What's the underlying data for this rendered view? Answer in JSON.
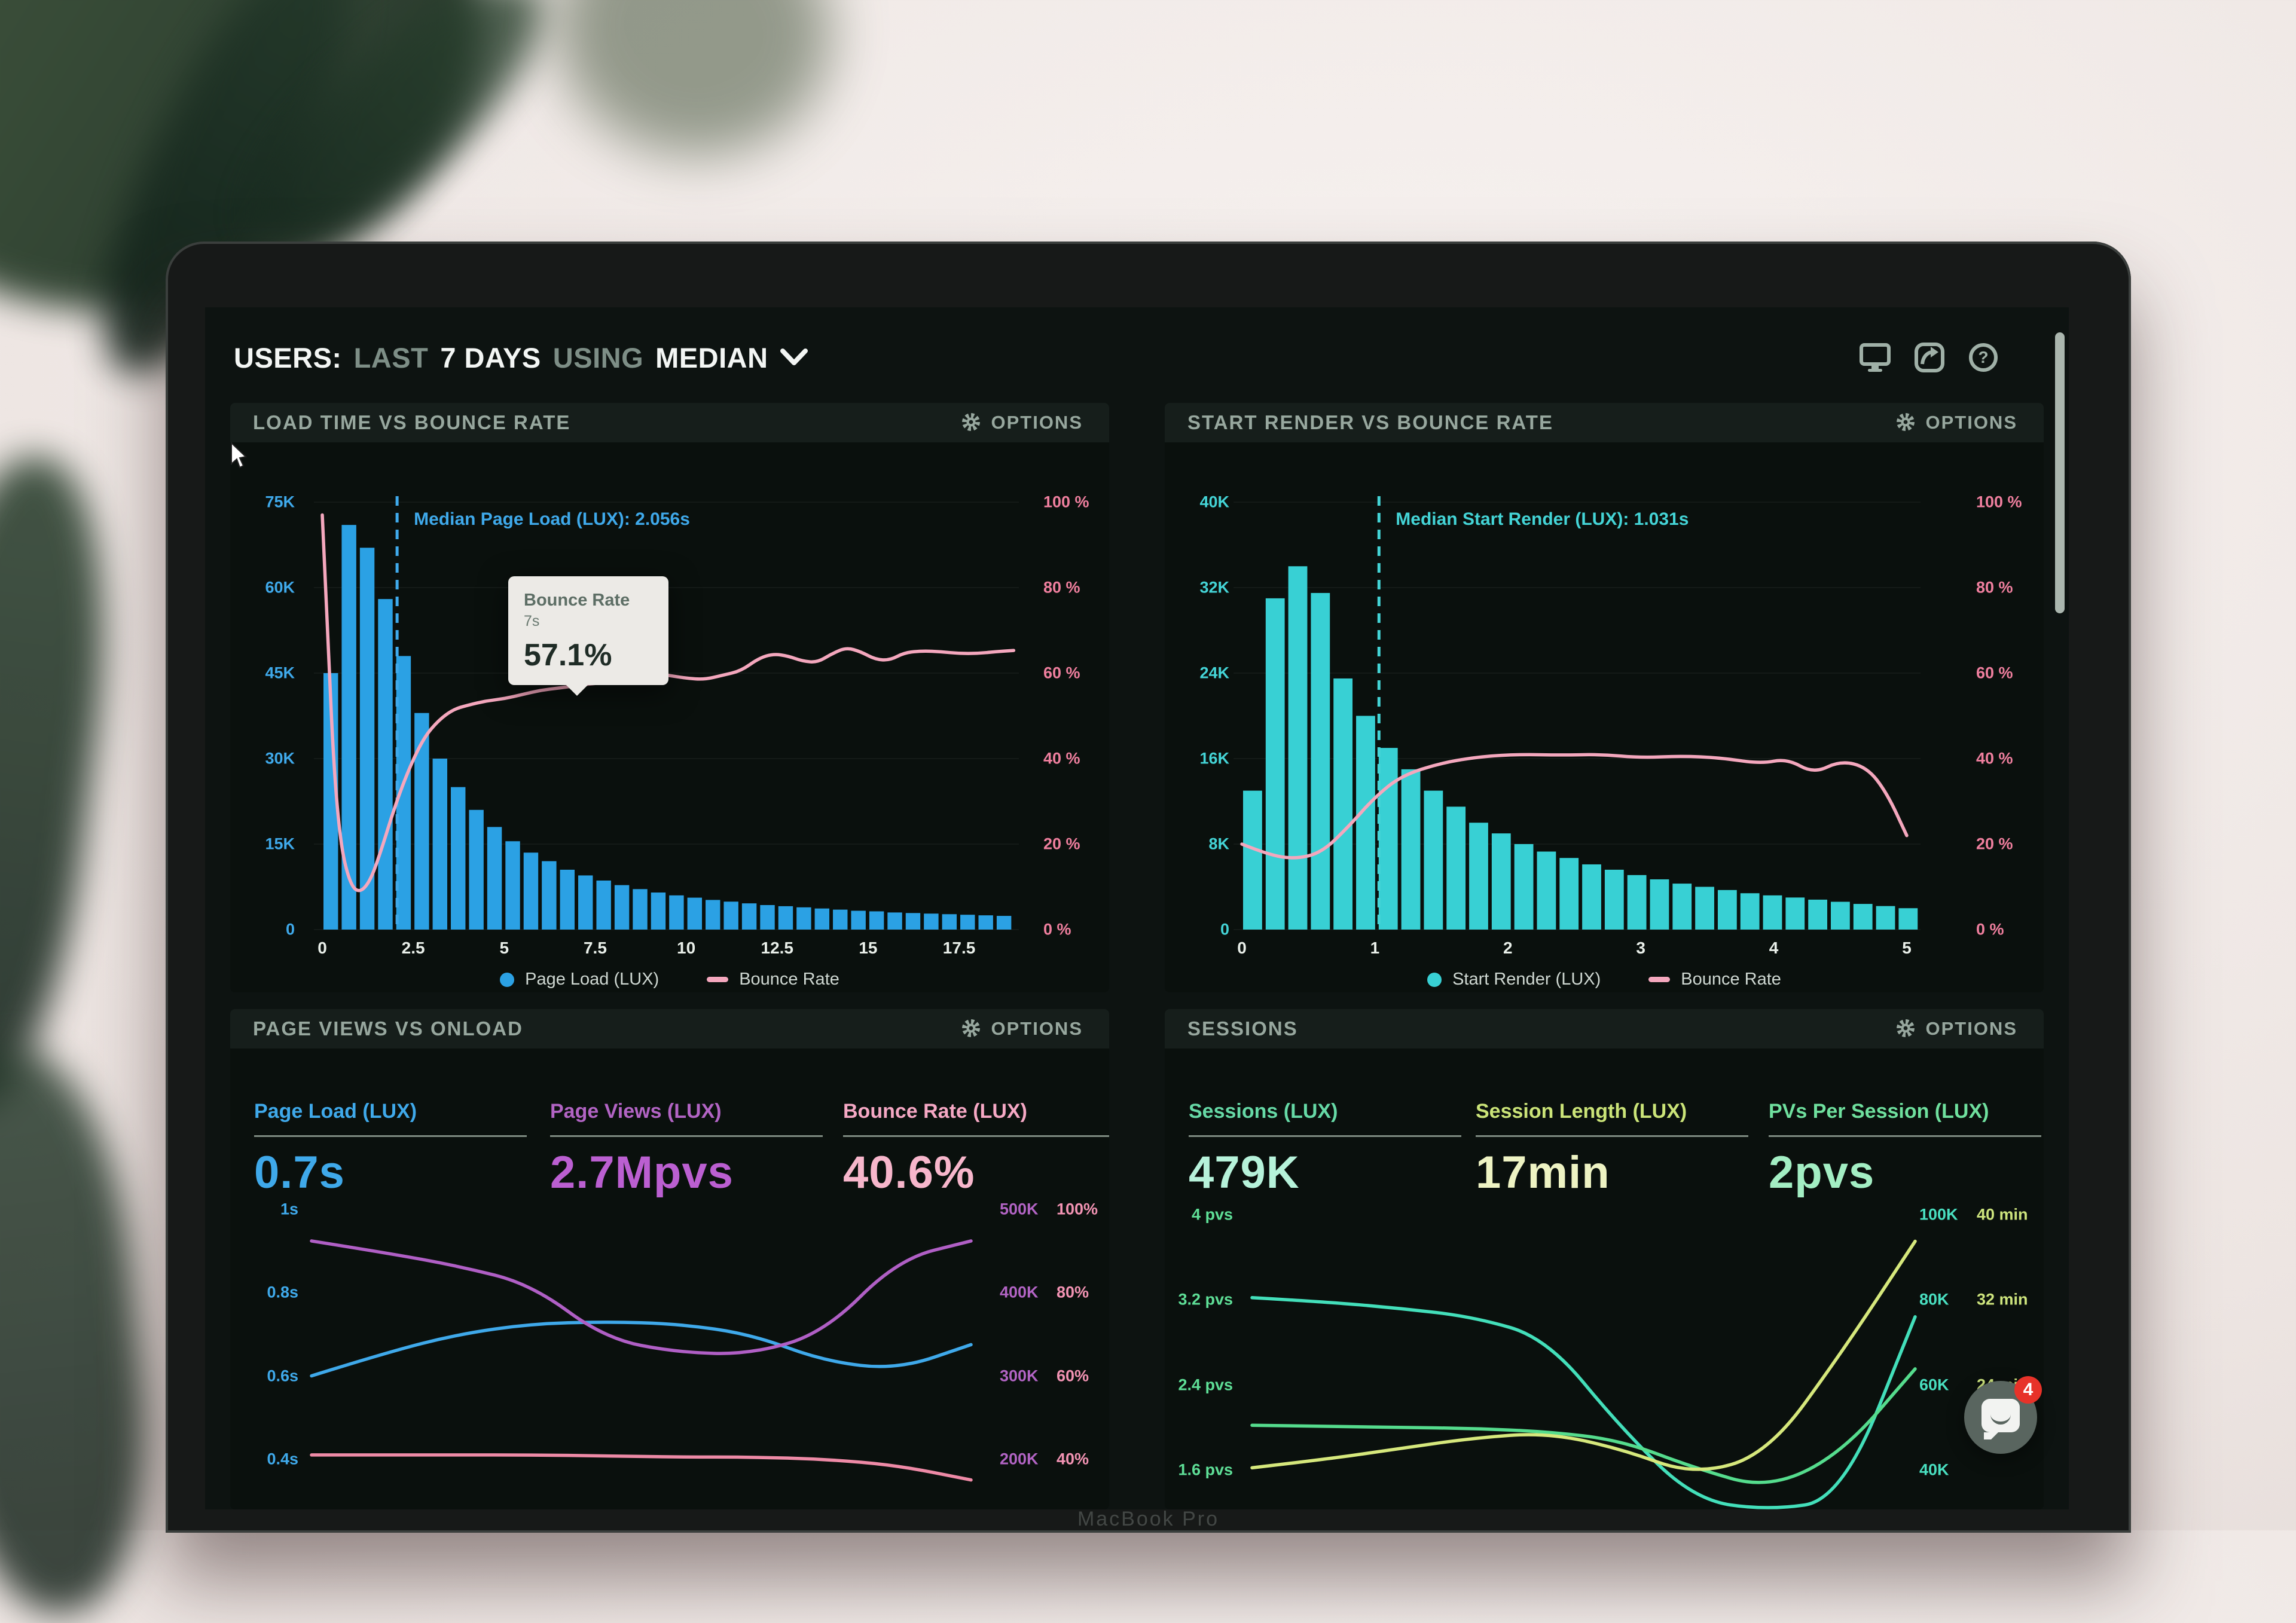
{
  "window": {
    "bezel_text": "MacBook Pro"
  },
  "header": {
    "title_parts": [
      {
        "text": "USERS:",
        "muted": false
      },
      {
        "text": "LAST",
        "muted": true
      },
      {
        "text": "7 DAYS",
        "muted": false
      },
      {
        "text": "USING",
        "muted": true
      },
      {
        "text": "MEDIAN",
        "muted": false
      }
    ],
    "icons": [
      "monitor-icon",
      "share-icon",
      "question-icon"
    ]
  },
  "panels": [
    {
      "title": "LOAD TIME VS BOUNCE RATE",
      "options_label": "OPTIONS"
    },
    {
      "title": "START RENDER VS BOUNCE RATE",
      "options_label": "OPTIONS"
    },
    {
      "title": "PAGE VIEWS VS ONLOAD",
      "options_label": "OPTIONS",
      "metrics": [
        {
          "label": "Page Load (LUX)",
          "value": "0.7s",
          "label_color": "#3fa9ea",
          "value_color": "#3fa9ea"
        },
        {
          "label": "Page Views (LUX)",
          "value": "2.7Mpvs",
          "label_color": "#b264c4",
          "value_color": "#bb5fd1"
        },
        {
          "label": "Bounce Rate (LUX)",
          "value": "40.6%",
          "label_color": "#f5a8c4",
          "value_color": "#f7b6cb"
        }
      ]
    },
    {
      "title": "SESSIONS",
      "options_label": "OPTIONS",
      "metrics": [
        {
          "label": "Sessions (LUX)",
          "value": "479K",
          "label_color": "#66d9a6",
          "value_color": "#b6f2da"
        },
        {
          "label": "Session Length (LUX)",
          "value": "17min",
          "label_color": "#cbe478",
          "value_color": "#eef3c3"
        },
        {
          "label": "PVs Per Session (LUX)",
          "value": "2pvs",
          "label_color": "#6fe09e",
          "value_color": "#a3eec3"
        }
      ]
    }
  ],
  "tooltip": {
    "title": "Bounce Rate",
    "x_label": "7s",
    "value": "57.1%"
  },
  "chat": {
    "badge": "4"
  },
  "chart_data": [
    {
      "type": "histogram+line",
      "title": "LOAD TIME VS BOUNCE RATE",
      "bar_color": "#2ba1e4",
      "line_color": "#f4a7bd",
      "axis_left_color": "#3fa9ea",
      "axis_right_color": "#ef7f9e",
      "y_left": [
        "75K",
        "60K",
        "45K",
        "30K",
        "15K",
        "0"
      ],
      "y_right": [
        "100 %",
        "80 %",
        "60 %",
        "40 %",
        "20 %",
        "0 %"
      ],
      "ylim_left_k": [
        0,
        75
      ],
      "ylim_right_pct": [
        0,
        100
      ],
      "x_tick_values": [
        0,
        2.5,
        5,
        7.5,
        10,
        12.5,
        15,
        17.5
      ],
      "x_tick_labels": [
        "0",
        "2.5",
        "5",
        "7.5",
        "10",
        "12.5",
        "15",
        "17.5"
      ],
      "bin_width_s": 0.5,
      "bars_k": [
        45,
        71,
        67,
        58,
        48,
        38,
        30,
        25,
        21,
        18,
        15.5,
        13.5,
        12,
        10.5,
        9.5,
        8.6,
        7.8,
        7.1,
        6.5,
        6,
        5.6,
        5.2,
        4.9,
        4.6,
        4.3,
        4.1,
        3.9,
        3.7,
        3.5,
        3.3,
        3.2,
        3,
        2.9,
        2.8,
        2.7,
        2.6,
        2.5,
        2.4
      ],
      "bounce_line_pts": [
        [
          0,
          97
        ],
        [
          0.15,
          70
        ],
        [
          0.3,
          40
        ],
        [
          0.5,
          20
        ],
        [
          0.75,
          11
        ],
        [
          1.0,
          8.5
        ],
        [
          1.3,
          11
        ],
        [
          1.6,
          18
        ],
        [
          2.0,
          29
        ],
        [
          2.4,
          38
        ],
        [
          2.8,
          45
        ],
        [
          3.2,
          49
        ],
        [
          3.6,
          51.5
        ],
        [
          4.0,
          52.5
        ],
        [
          4.5,
          53.5
        ],
        [
          5.0,
          54
        ],
        [
          5.5,
          55
        ],
        [
          6.0,
          56
        ],
        [
          6.5,
          56.5
        ],
        [
          7.0,
          57.1
        ],
        [
          7.5,
          57.6
        ],
        [
          8.0,
          58
        ],
        [
          8.5,
          58.3
        ],
        [
          9.0,
          60
        ],
        [
          9.5,
          59.5
        ],
        [
          10.0,
          58.8
        ],
        [
          10.5,
          58.5
        ],
        [
          11.0,
          59.5
        ],
        [
          11.5,
          60.5
        ],
        [
          12.0,
          63.5
        ],
        [
          12.4,
          64.5
        ],
        [
          12.8,
          64
        ],
        [
          13.2,
          62.8
        ],
        [
          13.6,
          62.5
        ],
        [
          14.0,
          64.5
        ],
        [
          14.4,
          66
        ],
        [
          14.8,
          65
        ],
        [
          15.2,
          63.2
        ],
        [
          15.6,
          63
        ],
        [
          16.0,
          64.8
        ],
        [
          16.5,
          65.2
        ],
        [
          17.0,
          65
        ],
        [
          17.5,
          64.6
        ],
        [
          18.0,
          64.6
        ],
        [
          18.5,
          65
        ],
        [
          19.0,
          65.3
        ]
      ],
      "median": {
        "label": "Median Page Load (LUX): 2.056s",
        "value_s": 2.056
      },
      "legend": [
        {
          "name": "Page Load (LUX)",
          "marker": "dot",
          "color": "#2ba1e4"
        },
        {
          "name": "Bounce Rate",
          "marker": "dash",
          "color": "#f4a7bd"
        }
      ]
    },
    {
      "type": "histogram+line",
      "title": "START RENDER VS BOUNCE RATE",
      "bar_color": "#38d0d4",
      "line_color": "#f4a7bd",
      "axis_left_color": "#44d4d6",
      "axis_right_color": "#ef7f9e",
      "y_left": [
        "40K",
        "32K",
        "24K",
        "16K",
        "8K",
        "0"
      ],
      "y_right": [
        "100 %",
        "80 %",
        "60 %",
        "40 %",
        "20 %",
        "0 %"
      ],
      "ylim_left_k": [
        0,
        40
      ],
      "ylim_right_pct": [
        0,
        100
      ],
      "x_tick_values": [
        0,
        1,
        2,
        3,
        4,
        5
      ],
      "x_tick_labels": [
        "0",
        "1",
        "2",
        "3",
        "4",
        "5"
      ],
      "bin_width_s": 0.17,
      "bars_k": [
        13,
        31,
        34,
        31.5,
        23.5,
        20,
        17,
        15,
        13,
        11.5,
        10,
        9,
        8,
        7.3,
        6.7,
        6.1,
        5.6,
        5.1,
        4.7,
        4.3,
        4,
        3.7,
        3.4,
        3.2,
        3,
        2.8,
        2.6,
        2.4,
        2.2,
        2
      ],
      "bounce_line_pts": [
        [
          0,
          20
        ],
        [
          0.2,
          17.5
        ],
        [
          0.4,
          16.5
        ],
        [
          0.6,
          18
        ],
        [
          0.8,
          24
        ],
        [
          1.0,
          31
        ],
        [
          1.2,
          36
        ],
        [
          1.5,
          39
        ],
        [
          1.8,
          40.5
        ],
        [
          2.1,
          41
        ],
        [
          2.4,
          40.8
        ],
        [
          2.7,
          41
        ],
        [
          3.0,
          40.2
        ],
        [
          3.3,
          40.6
        ],
        [
          3.6,
          40.2
        ],
        [
          3.9,
          38.8
        ],
        [
          4.1,
          40
        ],
        [
          4.3,
          36.5
        ],
        [
          4.5,
          39.5
        ],
        [
          4.7,
          38
        ],
        [
          4.85,
          32
        ],
        [
          5.0,
          22
        ]
      ],
      "median": {
        "label": "Median Start Render (LUX): 1.031s",
        "value_s": 1.031
      },
      "legend": [
        {
          "name": "Start Render (LUX)",
          "marker": "dot",
          "color": "#38d0d4"
        },
        {
          "name": "Bounce Rate",
          "marker": "dash",
          "color": "#f4a7bd"
        }
      ]
    },
    {
      "type": "line",
      "title": "PAGE VIEWS VS ONLOAD",
      "y_left": {
        "labels": [
          "1s",
          "0.8s",
          "0.6s",
          "0.4s"
        ],
        "color": "#3fa9ea"
      },
      "y_right_pairs": [
        [
          "500K",
          "100%"
        ],
        [
          "400K",
          "80%"
        ],
        [
          "300K",
          "60%"
        ],
        [
          "200K",
          "40%"
        ]
      ],
      "y_right_colors": [
        "#b264c4",
        "#f293b3"
      ],
      "series": [
        {
          "name": "Page Load",
          "color": "#3fa9ea",
          "values": [
            0.6,
            0.655,
            0.7,
            0.725,
            0.73,
            0.725,
            0.7,
            0.635,
            0.615,
            0.675
          ],
          "scale": {
            "top": 1.0,
            "per_row": 0.2
          }
        },
        {
          "name": "Page Views",
          "color": "#b05fc5",
          "values": [
            462,
            448,
            432,
            410,
            345,
            328,
            326,
            352,
            440,
            462
          ],
          "scale": {
            "top": 500,
            "per_row": 100
          }
        },
        {
          "name": "Bounce Rate",
          "color": "#ee8aa6",
          "values": [
            41,
            41,
            41,
            41,
            40.8,
            40.5,
            40.5,
            40,
            38.5,
            35
          ],
          "scale": {
            "top": 100,
            "per_row": 20
          }
        }
      ]
    },
    {
      "type": "line",
      "title": "SESSIONS",
      "y_left": {
        "labels": [
          "4 pvs",
          "3.2 pvs",
          "2.4 pvs",
          "1.6 pvs"
        ],
        "color": "#5ede96"
      },
      "y_right_pairs": [
        [
          "100K",
          "40 min"
        ],
        [
          "80K",
          "32 min"
        ],
        [
          "60K",
          "24 min"
        ],
        [
          "40K",
          null
        ]
      ],
      "y_right_colors": [
        "#49dfc0",
        "#cde47d"
      ],
      "series": [
        {
          "name": "Sessions",
          "color": "#43dfba",
          "values": [
            80.5,
            79.5,
            78,
            76,
            71,
            50,
            33,
            30.5,
            33,
            76
          ],
          "scale": {
            "top": 100,
            "per_row": 20
          }
        },
        {
          "name": "PVs Per Session",
          "color": "#55dc8d",
          "values": [
            2.02,
            2.01,
            2.0,
            1.99,
            1.96,
            1.88,
            1.62,
            1.42,
            1.75,
            2.55
          ],
          "scale": {
            "top": 4,
            "per_row": 0.8
          }
        },
        {
          "name": "Session Length",
          "color": "#d6e87c",
          "values": [
            16.2,
            17,
            18,
            19,
            19.5,
            18,
            15.5,
            17.5,
            27,
            37.5
          ],
          "scale": {
            "top": 40,
            "per_row": 8
          }
        }
      ]
    }
  ]
}
